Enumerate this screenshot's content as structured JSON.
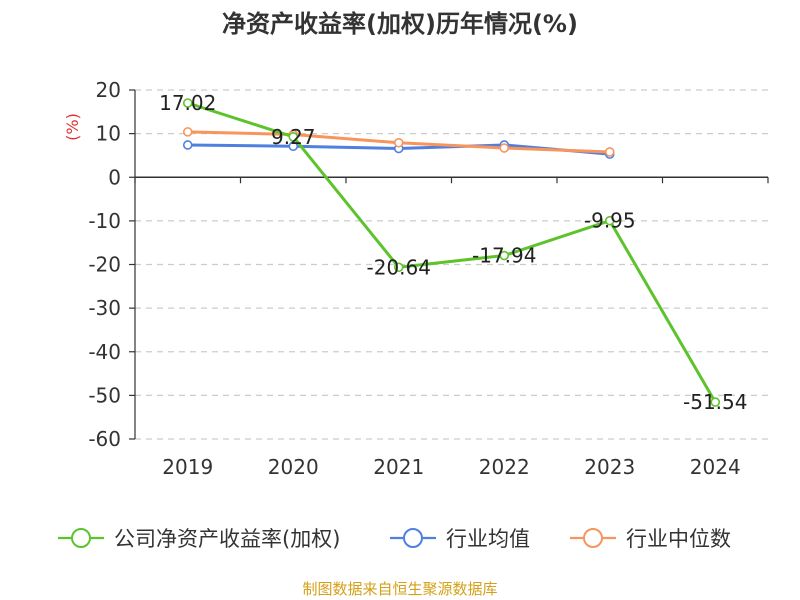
{
  "chart_data": {
    "type": "line",
    "title": "净资产收益率(加权)历年情况(%)",
    "ylabel": "(%)",
    "xlabel": "",
    "categories": [
      "2019",
      "2020",
      "2021",
      "2022",
      "2023",
      "2024"
    ],
    "ylim": [
      -60,
      20
    ],
    "yticks": [
      20,
      10,
      0,
      -10,
      -20,
      -30,
      -40,
      -50,
      -60
    ],
    "ytick_labels": [
      "20",
      "10",
      "0",
      "-10",
      "-20",
      "-30",
      "-40",
      "-50",
      "-60"
    ],
    "grid": true,
    "legend_position": "bottom",
    "series": [
      {
        "name": "公司净资产收益率(加权)",
        "color": "#5cc32d",
        "values": [
          17.02,
          9.27,
          -20.64,
          -17.94,
          -9.95,
          -51.54
        ],
        "labels": [
          "17.02",
          "9.27",
          "-20.64",
          "-17.94",
          "-9.95",
          "-51.54"
        ]
      },
      {
        "name": "行业均值",
        "color": "#4f7fdf",
        "values": [
          7.4,
          7.1,
          6.6,
          7.4,
          5.3,
          null
        ],
        "labels": null
      },
      {
        "name": "行业中位数",
        "color": "#f7955c",
        "values": [
          10.4,
          9.8,
          7.9,
          6.7,
          5.8,
          null
        ],
        "labels": null
      }
    ],
    "source": "制图数据来自恒生聚源数据库",
    "title_color": "#333333",
    "ylabel_color": "#e03131",
    "source_color": "#d4a017"
  }
}
